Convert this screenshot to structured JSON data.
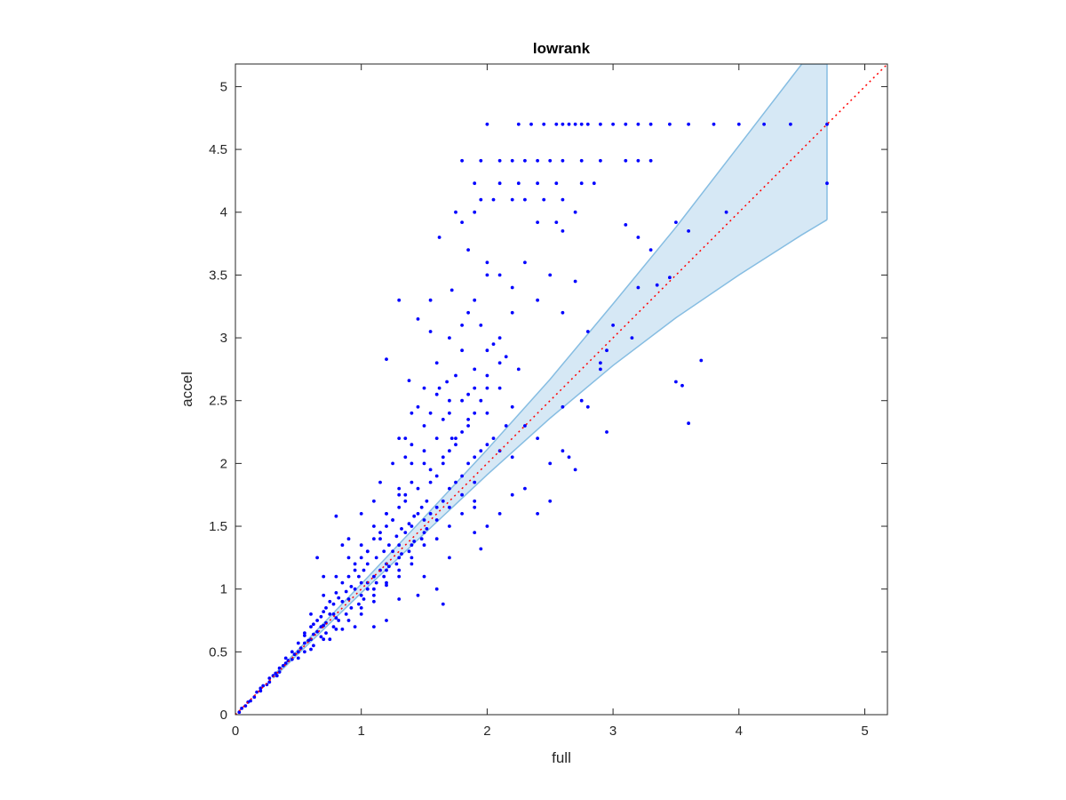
{
  "chart_data": {
    "type": "scatter",
    "title": "lowrank",
    "xlabel": "full",
    "ylabel": "accel",
    "xlim": [
      0,
      5.18
    ],
    "ylim": [
      0,
      5.18
    ],
    "xticks": [
      0,
      1,
      2,
      3,
      4,
      5
    ],
    "yticks": [
      0,
      0.5,
      1,
      1.5,
      2,
      2.5,
      3,
      3.5,
      4,
      4.5,
      5
    ],
    "xtick_labels": [
      "0",
      "1",
      "2",
      "3",
      "4",
      "5"
    ],
    "ytick_labels": [
      "0",
      "0.5",
      "1",
      "1.5",
      "2",
      "2.5",
      "3",
      "3.5",
      "4",
      "4.5",
      "5"
    ],
    "grid": false,
    "box": true,
    "colors": {
      "points": "#0000ff",
      "band_fill": "#d6e8f5",
      "band_edge": "#86bde2",
      "identity_line": "#ff0000",
      "axes": "#262626"
    },
    "identity_line": {
      "x": [
        0,
        5.18
      ],
      "y": [
        0,
        5.18
      ],
      "style": "dotted"
    },
    "band": {
      "x": [
        0.3,
        1,
        1.5,
        2,
        2.5,
        3,
        3.5,
        4,
        4.5,
        4.7
      ],
      "upper": [
        0.31,
        1.04,
        1.57,
        2.11,
        2.67,
        3.27,
        3.88,
        4.53,
        5.18,
        5.18
      ],
      "lower": [
        0.29,
        0.97,
        1.44,
        1.91,
        2.36,
        2.78,
        3.16,
        3.5,
        3.82,
        3.94
      ]
    },
    "levels": {
      "x": [
        4.7,
        4.41,
        4.23,
        4.0,
        3.85,
        3.7,
        3.5,
        3.4
      ],
      "y": [
        4.7,
        4.41,
        4.23,
        4.0,
        3.85,
        3.7,
        3.5,
        3.4
      ]
    },
    "points": [
      [
        0.05,
        0.05
      ],
      [
        0.1,
        0.1
      ],
      [
        0.15,
        0.14
      ],
      [
        0.2,
        0.21
      ],
      [
        0.25,
        0.24
      ],
      [
        0.3,
        0.31
      ],
      [
        0.35,
        0.34
      ],
      [
        0.4,
        0.41
      ],
      [
        0.45,
        0.44
      ],
      [
        0.5,
        0.5
      ],
      [
        0.55,
        0.57
      ],
      [
        0.6,
        0.6
      ],
      [
        0.65,
        0.66
      ],
      [
        0.7,
        0.71
      ],
      [
        0.75,
        0.8
      ],
      [
        0.8,
        0.77
      ],
      [
        0.85,
        0.9
      ],
      [
        0.9,
        0.92
      ],
      [
        0.95,
        1.0
      ],
      [
        1.0,
        1.05
      ],
      [
        0.4,
        0.45
      ],
      [
        0.45,
        0.5
      ],
      [
        0.5,
        0.57
      ],
      [
        0.55,
        0.63
      ],
      [
        0.6,
        0.7
      ],
      [
        0.65,
        0.75
      ],
      [
        0.7,
        0.82
      ],
      [
        0.75,
        0.9
      ],
      [
        0.8,
        0.97
      ],
      [
        0.85,
        1.05
      ],
      [
        0.5,
        0.45
      ],
      [
        0.6,
        0.52
      ],
      [
        0.7,
        0.6
      ],
      [
        0.8,
        0.68
      ],
      [
        0.9,
        0.75
      ],
      [
        1.0,
        0.85
      ],
      [
        1.1,
        0.95
      ],
      [
        1.2,
        1.03
      ],
      [
        1.3,
        1.1
      ],
      [
        1.4,
        1.2
      ],
      [
        0.6,
        0.8
      ],
      [
        0.7,
        0.95
      ],
      [
        0.8,
        1.1
      ],
      [
        0.9,
        1.25
      ],
      [
        1.0,
        1.35
      ],
      [
        1.1,
        1.5
      ],
      [
        1.2,
        1.6
      ],
      [
        1.3,
        1.75
      ],
      [
        1.4,
        1.85
      ],
      [
        1.5,
        2.0
      ],
      [
        0.95,
        1.2
      ],
      [
        1.05,
        1.3
      ],
      [
        1.15,
        1.4
      ],
      [
        1.25,
        1.55
      ],
      [
        1.35,
        1.7
      ],
      [
        1.45,
        1.8
      ],
      [
        1.55,
        1.95
      ],
      [
        1.65,
        2.05
      ],
      [
        1.75,
        2.2
      ],
      [
        1.85,
        2.35
      ],
      [
        1.0,
        0.95
      ],
      [
        1.1,
        1.0
      ],
      [
        1.2,
        1.15
      ],
      [
        1.3,
        1.25
      ],
      [
        1.4,
        1.35
      ],
      [
        1.5,
        1.45
      ],
      [
        1.6,
        1.55
      ],
      [
        1.7,
        1.65
      ],
      [
        1.8,
        1.75
      ],
      [
        1.9,
        1.85
      ],
      [
        1.0,
        0.8
      ],
      [
        1.1,
        0.9
      ],
      [
        1.2,
        1.05
      ],
      [
        1.3,
        1.15
      ],
      [
        1.4,
        1.25
      ],
      [
        1.5,
        1.35
      ],
      [
        1.6,
        1.4
      ],
      [
        1.7,
        1.5
      ],
      [
        1.8,
        1.6
      ],
      [
        1.9,
        1.7
      ],
      [
        1.2,
        1.6
      ],
      [
        1.3,
        1.8
      ],
      [
        1.4,
        2.0
      ],
      [
        1.5,
        2.1
      ],
      [
        1.6,
        2.2
      ],
      [
        1.7,
        2.4
      ],
      [
        1.8,
        2.5
      ],
      [
        1.9,
        2.6
      ],
      [
        2.0,
        2.7
      ],
      [
        2.1,
        2.8
      ],
      [
        1.3,
        2.2
      ],
      [
        1.4,
        2.4
      ],
      [
        1.5,
        2.6
      ],
      [
        1.6,
        2.8
      ],
      [
        1.7,
        3.0
      ],
      [
        1.8,
        3.1
      ],
      [
        1.9,
        3.3
      ],
      [
        2.0,
        3.5
      ],
      [
        2.1,
        3.0
      ],
      [
        2.2,
        3.2
      ],
      [
        1.2,
        2.83
      ],
      [
        1.3,
        3.3
      ],
      [
        1.38,
        2.66
      ],
      [
        1.45,
        3.15
      ],
      [
        1.55,
        3.05
      ],
      [
        1.62,
        3.8
      ],
      [
        1.75,
        4.0
      ],
      [
        1.8,
        3.92
      ],
      [
        1.85,
        3.7
      ],
      [
        1.9,
        4.0
      ],
      [
        2.0,
        4.7
      ],
      [
        2.25,
        4.7
      ],
      [
        2.35,
        4.7
      ],
      [
        2.45,
        4.7
      ],
      [
        2.55,
        4.7
      ],
      [
        2.6,
        4.7
      ],
      [
        2.65,
        4.7
      ],
      [
        2.7,
        4.7
      ],
      [
        2.75,
        4.7
      ],
      [
        2.8,
        4.7
      ],
      [
        2.9,
        4.7
      ],
      [
        3.0,
        4.7
      ],
      [
        3.1,
        4.7
      ],
      [
        3.2,
        4.7
      ],
      [
        3.3,
        4.7
      ],
      [
        3.45,
        4.7
      ],
      [
        3.6,
        4.7
      ],
      [
        3.8,
        4.7
      ],
      [
        4.0,
        4.7
      ],
      [
        4.2,
        4.7
      ],
      [
        1.8,
        4.41
      ],
      [
        1.95,
        4.41
      ],
      [
        2.1,
        4.41
      ],
      [
        2.2,
        4.41
      ],
      [
        2.3,
        4.41
      ],
      [
        2.4,
        4.41
      ],
      [
        2.5,
        4.41
      ],
      [
        2.6,
        4.41
      ],
      [
        2.75,
        4.41
      ],
      [
        2.9,
        4.41
      ],
      [
        3.1,
        4.41
      ],
      [
        3.2,
        4.41
      ],
      [
        3.3,
        4.41
      ],
      [
        1.9,
        4.23
      ],
      [
        2.1,
        4.23
      ],
      [
        2.25,
        4.23
      ],
      [
        2.4,
        4.23
      ],
      [
        2.55,
        4.23
      ],
      [
        2.75,
        4.23
      ],
      [
        2.85,
        4.23
      ],
      [
        1.95,
        4.1
      ],
      [
        2.05,
        4.1
      ],
      [
        2.2,
        4.1
      ],
      [
        2.3,
        4.1
      ],
      [
        2.45,
        4.1
      ],
      [
        2.6,
        4.1
      ],
      [
        2.7,
        4.0
      ],
      [
        2.4,
        3.92
      ],
      [
        2.55,
        3.92
      ],
      [
        2.6,
        3.85
      ],
      [
        2.0,
        3.6
      ],
      [
        2.1,
        3.5
      ],
      [
        2.2,
        3.4
      ],
      [
        2.3,
        3.6
      ],
      [
        2.4,
        3.3
      ],
      [
        2.5,
        3.5
      ],
      [
        2.6,
        3.2
      ],
      [
        2.7,
        3.45
      ],
      [
        2.8,
        3.05
      ],
      [
        2.9,
        2.8
      ],
      [
        2.0,
        2.9
      ],
      [
        2.1,
        2.6
      ],
      [
        2.2,
        2.45
      ],
      [
        2.3,
        2.3
      ],
      [
        2.4,
        2.2
      ],
      [
        2.5,
        2.0
      ],
      [
        2.6,
        2.1
      ],
      [
        2.7,
        1.95
      ],
      [
        2.8,
        2.45
      ],
      [
        2.95,
        2.25
      ],
      [
        1.9,
        1.65
      ],
      [
        2.0,
        1.5
      ],
      [
        2.1,
        1.6
      ],
      [
        2.2,
        1.75
      ],
      [
        2.3,
        1.8
      ],
      [
        2.4,
        1.6
      ],
      [
        2.5,
        1.7
      ],
      [
        1.95,
        1.32
      ],
      [
        1.9,
        1.45
      ],
      [
        1.7,
        1.25
      ],
      [
        1.5,
        1.1
      ],
      [
        1.6,
        1.0
      ],
      [
        1.65,
        0.88
      ],
      [
        1.45,
        0.95
      ],
      [
        1.3,
        0.92
      ],
      [
        1.2,
        0.75
      ],
      [
        1.1,
        0.7
      ],
      [
        0.95,
        0.7
      ],
      [
        0.85,
        0.68
      ],
      [
        0.75,
        0.6
      ],
      [
        0.8,
        1.58
      ],
      [
        0.65,
        1.25
      ],
      [
        0.7,
        1.1
      ],
      [
        0.85,
        1.35
      ],
      [
        0.9,
        1.4
      ],
      [
        1.0,
        1.6
      ],
      [
        1.1,
        1.7
      ],
      [
        1.15,
        1.85
      ],
      [
        1.25,
        2.0
      ],
      [
        1.35,
        2.2
      ],
      [
        3.2,
        3.4
      ],
      [
        3.35,
        3.42
      ],
      [
        3.45,
        3.48
      ],
      [
        3.5,
        3.92
      ],
      [
        3.6,
        3.85
      ],
      [
        3.7,
        2.82
      ],
      [
        3.5,
        2.65
      ],
      [
        3.55,
        2.62
      ],
      [
        3.6,
        2.32
      ],
      [
        3.9,
        4.0
      ],
      [
        4.41,
        4.7
      ],
      [
        4.7,
        4.7
      ],
      [
        4.7,
        4.23
      ],
      [
        3.15,
        3.0
      ],
      [
        3.0,
        3.1
      ],
      [
        2.95,
        2.9
      ],
      [
        2.9,
        2.75
      ],
      [
        2.75,
        2.5
      ],
      [
        2.6,
        2.45
      ],
      [
        2.65,
        2.05
      ],
      [
        3.1,
        3.9
      ],
      [
        3.2,
        3.8
      ],
      [
        3.3,
        3.7
      ],
      [
        1.55,
        3.3
      ],
      [
        1.72,
        3.38
      ],
      [
        1.85,
        3.2
      ],
      [
        1.95,
        3.1
      ],
      [
        2.05,
        2.95
      ],
      [
        2.15,
        2.85
      ],
      [
        2.25,
        2.75
      ],
      [
        0.35,
        0.37
      ],
      [
        0.38,
        0.39
      ],
      [
        0.42,
        0.43
      ],
      [
        0.47,
        0.48
      ],
      [
        0.52,
        0.53
      ],
      [
        0.58,
        0.59
      ],
      [
        0.62,
        0.64
      ],
      [
        0.68,
        0.7
      ],
      [
        0.72,
        0.73
      ],
      [
        0.78,
        0.8
      ],
      [
        0.55,
        0.65
      ],
      [
        0.62,
        0.72
      ],
      [
        0.68,
        0.78
      ],
      [
        0.72,
        0.85
      ],
      [
        0.78,
        0.88
      ],
      [
        0.82,
        0.93
      ],
      [
        0.88,
        0.98
      ],
      [
        0.92,
        1.02
      ],
      [
        0.98,
        1.1
      ],
      [
        1.02,
        1.15
      ],
      [
        0.55,
        0.5
      ],
      [
        0.62,
        0.55
      ],
      [
        0.68,
        0.62
      ],
      [
        0.72,
        0.65
      ],
      [
        0.78,
        0.7
      ],
      [
        0.82,
        0.75
      ],
      [
        0.88,
        0.8
      ],
      [
        0.92,
        0.85
      ],
      [
        0.98,
        0.88
      ],
      [
        1.02,
        0.92
      ],
      [
        1.05,
        1.2
      ],
      [
        1.12,
        1.25
      ],
      [
        1.18,
        1.3
      ],
      [
        1.22,
        1.35
      ],
      [
        1.28,
        1.42
      ],
      [
        1.32,
        1.48
      ],
      [
        1.38,
        1.52
      ],
      [
        1.42,
        1.58
      ],
      [
        1.48,
        1.65
      ],
      [
        1.52,
        1.7
      ],
      [
        1.05,
        1.0
      ],
      [
        1.12,
        1.05
      ],
      [
        1.18,
        1.1
      ],
      [
        1.22,
        1.18
      ],
      [
        1.28,
        1.2
      ],
      [
        1.32,
        1.28
      ],
      [
        1.38,
        1.3
      ],
      [
        1.42,
        1.38
      ],
      [
        1.48,
        1.4
      ],
      [
        1.52,
        1.48
      ],
      [
        1.55,
        1.6
      ],
      [
        1.6,
        1.65
      ],
      [
        1.65,
        1.7
      ],
      [
        1.7,
        1.8
      ],
      [
        1.75,
        1.85
      ],
      [
        1.8,
        1.9
      ],
      [
        1.85,
        2.0
      ],
      [
        1.9,
        2.05
      ],
      [
        1.95,
        2.1
      ],
      [
        2.0,
        2.15
      ],
      [
        1.55,
        1.85
      ],
      [
        1.6,
        1.9
      ],
      [
        1.65,
        2.0
      ],
      [
        1.7,
        2.1
      ],
      [
        1.75,
        2.15
      ],
      [
        1.8,
        2.25
      ],
      [
        1.85,
        2.3
      ],
      [
        1.9,
        2.4
      ],
      [
        1.95,
        2.5
      ],
      [
        2.0,
        2.6
      ],
      [
        1.5,
        1.55
      ],
      [
        1.45,
        1.6
      ],
      [
        1.4,
        1.5
      ],
      [
        1.35,
        1.45
      ],
      [
        1.3,
        1.35
      ],
      [
        1.25,
        1.3
      ],
      [
        1.2,
        1.2
      ],
      [
        1.15,
        1.15
      ],
      [
        1.1,
        1.1
      ],
      [
        1.05,
        1.05
      ],
      [
        0.9,
        1.1
      ],
      [
        0.95,
        1.15
      ],
      [
        1.0,
        1.25
      ],
      [
        1.05,
        1.3
      ],
      [
        1.1,
        1.4
      ],
      [
        1.15,
        1.45
      ],
      [
        1.2,
        1.5
      ],
      [
        1.25,
        1.55
      ],
      [
        1.3,
        1.65
      ],
      [
        1.35,
        1.75
      ],
      [
        0.2,
        0.19
      ],
      [
        0.22,
        0.23
      ],
      [
        0.27,
        0.26
      ],
      [
        0.32,
        0.33
      ],
      [
        0.12,
        0.11
      ],
      [
        0.17,
        0.18
      ],
      [
        0.08,
        0.07
      ],
      [
        0.03,
        0.02
      ],
      [
        0.27,
        0.29
      ],
      [
        0.33,
        0.31
      ],
      [
        1.7,
        2.5
      ],
      [
        1.75,
        2.7
      ],
      [
        1.8,
        2.9
      ],
      [
        1.85,
        2.55
      ],
      [
        1.9,
        2.75
      ],
      [
        2.0,
        2.4
      ],
      [
        2.05,
        2.2
      ],
      [
        2.1,
        2.1
      ],
      [
        2.15,
        2.3
      ],
      [
        2.2,
        2.05
      ],
      [
        1.6,
        2.55
      ],
      [
        1.65,
        2.35
      ],
      [
        1.5,
        2.3
      ],
      [
        1.45,
        2.45
      ],
      [
        1.4,
        2.15
      ],
      [
        1.35,
        2.05
      ],
      [
        1.55,
        2.4
      ],
      [
        1.62,
        2.6
      ],
      [
        1.68,
        2.65
      ],
      [
        1.72,
        2.2
      ]
    ]
  }
}
